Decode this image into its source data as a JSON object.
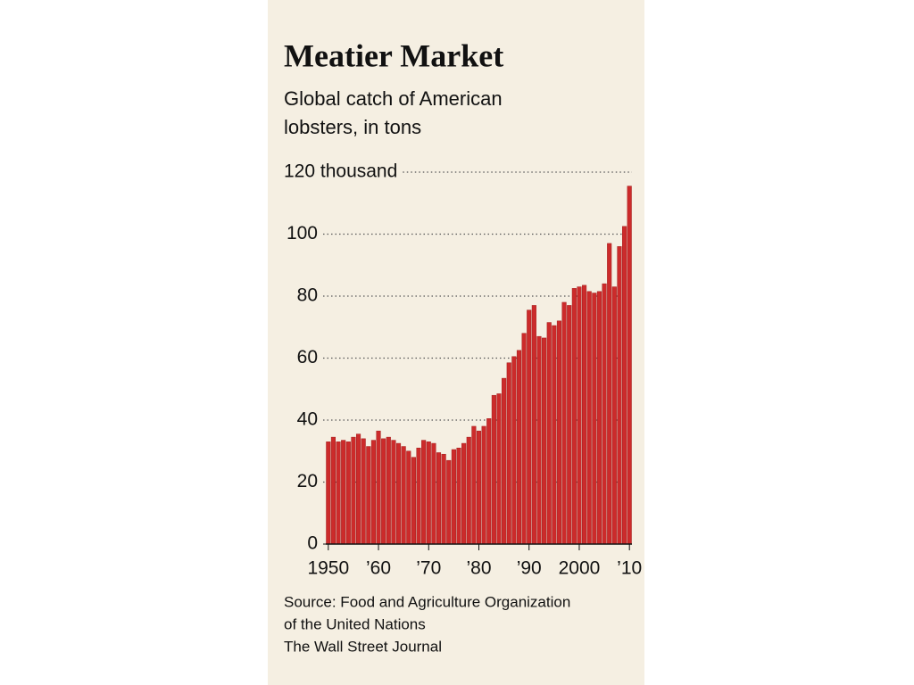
{
  "chart_data": {
    "type": "bar",
    "title": "Meatier Market",
    "subtitle": [
      "Global catch of American",
      "lobsters, in tons"
    ],
    "x": [
      1950,
      1951,
      1952,
      1953,
      1954,
      1955,
      1956,
      1957,
      1958,
      1959,
      1960,
      1961,
      1962,
      1963,
      1964,
      1965,
      1966,
      1967,
      1968,
      1969,
      1970,
      1971,
      1972,
      1973,
      1974,
      1975,
      1976,
      1977,
      1978,
      1979,
      1980,
      1981,
      1982,
      1983,
      1984,
      1985,
      1986,
      1987,
      1988,
      1989,
      1990,
      1991,
      1992,
      1993,
      1994,
      1995,
      1996,
      1997,
      1998,
      1999,
      2000,
      2001,
      2002,
      2003,
      2004,
      2005,
      2006,
      2007,
      2008,
      2009,
      2010
    ],
    "values": [
      33,
      34.5,
      33,
      33.5,
      33,
      34.5,
      35.5,
      34,
      31.5,
      33.5,
      36.5,
      34,
      34.5,
      33.5,
      32.5,
      31.5,
      30,
      28,
      31,
      33.5,
      33,
      32.5,
      29.5,
      29,
      27,
      30.5,
      31,
      32.5,
      34.5,
      38,
      36.5,
      38,
      40.5,
      48,
      48.5,
      53.5,
      58.5,
      60.5,
      62.5,
      68,
      75.5,
      77,
      67,
      66.5,
      71.5,
      70.5,
      72,
      78,
      77,
      82.5,
      83,
      83.5,
      81.5,
      81,
      81.5,
      84,
      97,
      83,
      96,
      102.5,
      115.5
    ],
    "color": "#cc2b2b",
    "xlim": [
      1949.5,
      2010.5
    ],
    "xticks": [
      1950,
      {
        "value": 1960,
        "label": "’60"
      },
      {
        "value": 1970,
        "label": "’70"
      },
      {
        "value": 1980,
        "label": "’80"
      },
      {
        "value": 1990,
        "label": "’90"
      },
      2000,
      {
        "value": 2010,
        "label": "’10"
      }
    ],
    "ylim": [
      0,
      120
    ],
    "yticks": [
      0,
      20,
      40,
      60,
      80,
      100,
      {
        "value": 120,
        "label": "120 thousand"
      }
    ],
    "grid": true,
    "source": [
      "Source: Food and Agriculture Organization",
      "of the United Nations",
      "The Wall Street Journal"
    ]
  }
}
